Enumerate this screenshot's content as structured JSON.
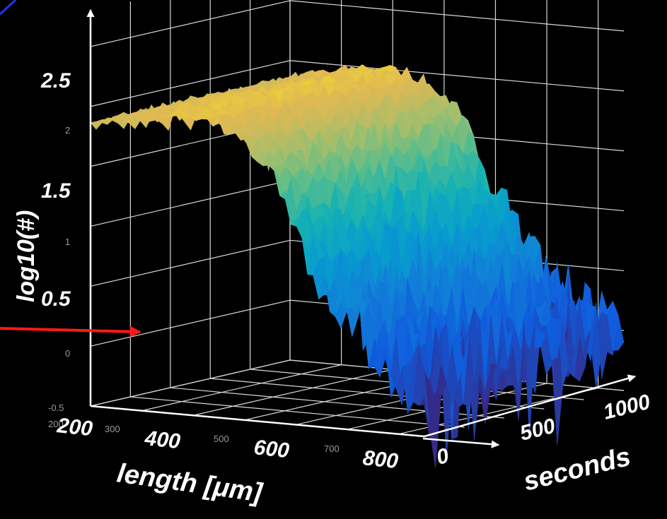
{
  "chart_data": {
    "type": "surface",
    "title": "",
    "xlabel": "length [μm]",
    "ylabel": "seconds",
    "zlabel": "log10(#)",
    "xlim": [
      200,
      850
    ],
    "ylim": [
      0,
      1000
    ],
    "zlim": [
      -0.5,
      2.8
    ],
    "x_ticks_minor": [
      "200",
      "300",
      "500",
      "700"
    ],
    "x_ticks_major": [
      "200",
      "400",
      "600",
      "800"
    ],
    "y_ticks_major": [
      "0",
      "500",
      "1000"
    ],
    "z_ticks_minor": [
      "-0.5",
      "0",
      "1",
      "2"
    ],
    "z_ticks_major": [
      "0.5",
      "1.5",
      "2.5"
    ],
    "colormap": "parula",
    "colors": {
      "arrow_red": "#ff1a1a",
      "arrow_white": "#ffffff",
      "grid": "#d8d8d8",
      "corner_line": "#2233ff"
    },
    "surface_profile": {
      "length_um": [
        200,
        250,
        300,
        350,
        400,
        450,
        500,
        530,
        560,
        600,
        650,
        700,
        750,
        800,
        850
      ],
      "log10_count": [
        1.85,
        1.9,
        1.95,
        1.98,
        2.0,
        1.95,
        1.85,
        1.7,
        1.45,
        1.1,
        0.75,
        0.45,
        0.2,
        0.05,
        -0.05
      ],
      "noise_amplitude": [
        0.05,
        0.05,
        0.05,
        0.06,
        0.06,
        0.07,
        0.08,
        0.1,
        0.15,
        0.2,
        0.25,
        0.3,
        0.35,
        0.35,
        0.35
      ]
    }
  }
}
